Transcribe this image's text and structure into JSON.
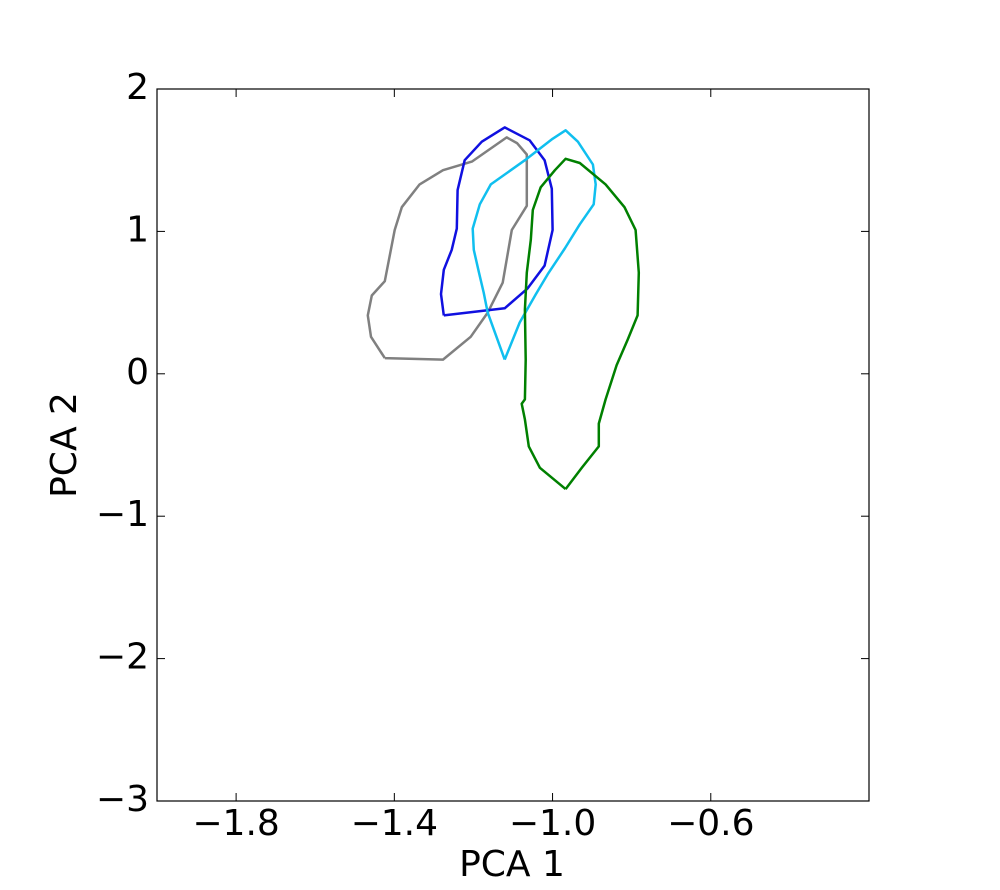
{
  "chart_data": {
    "type": "line",
    "x_label": "PCA 1",
    "y_label": "PCA 2",
    "xlim": [
      -2.0,
      -0.2
    ],
    "ylim": [
      -3,
      2
    ],
    "xticks": [
      {
        "value": -1.8,
        "label": "−1.8"
      },
      {
        "value": -1.4,
        "label": "−1.4"
      },
      {
        "value": -1.0,
        "label": "−1.0"
      },
      {
        "value": -0.6,
        "label": "−0.6"
      }
    ],
    "yticks": [
      {
        "value": -3,
        "label": "−3"
      },
      {
        "value": -2,
        "label": "−2"
      },
      {
        "value": -1,
        "label": "−1"
      },
      0,
      1,
      2
    ],
    "grid": false,
    "series": [
      {
        "color": "#808080",
        "x": [
          -1.424,
          -1.277,
          -1.207,
          -1.164,
          -1.126,
          -1.103,
          -1.065,
          -1.065,
          -1.09,
          -1.116,
          -1.204,
          -1.277,
          -1.336,
          -1.381,
          -1.399,
          -1.424,
          -1.457,
          -1.467,
          -1.459,
          -1.424
        ],
        "y": [
          0.11,
          0.1,
          0.26,
          0.43,
          0.64,
          1.01,
          1.18,
          1.54,
          1.62,
          1.66,
          1.49,
          1.43,
          1.33,
          1.17,
          1.01,
          0.65,
          0.55,
          0.41,
          0.26,
          0.11
        ]
      },
      {
        "color": "#1010e0",
        "x": [
          -1.275,
          -1.121,
          -1.063,
          -1.02,
          -1.0,
          -1.002,
          -1.02,
          -1.058,
          -1.121,
          -1.179,
          -1.222,
          -1.24,
          -1.242,
          -1.255,
          -1.275,
          -1.282,
          -1.275
        ],
        "y": [
          0.41,
          0.46,
          0.6,
          0.76,
          1.01,
          1.3,
          1.5,
          1.64,
          1.73,
          1.63,
          1.5,
          1.29,
          1.02,
          0.87,
          0.73,
          0.56,
          0.41
        ]
      },
      {
        "color": "#10bfef",
        "x": [
          -1.121,
          -1.083,
          -1.042,
          -1.012,
          -0.969,
          -0.931,
          -0.896,
          -0.891,
          -0.898,
          -0.936,
          -0.967,
          -1.0,
          -1.07,
          -1.156,
          -1.184,
          -1.202,
          -1.199,
          -1.186,
          -1.174,
          -1.164,
          -1.121
        ],
        "y": [
          0.1,
          0.36,
          0.56,
          0.7,
          0.88,
          1.05,
          1.19,
          1.33,
          1.47,
          1.63,
          1.71,
          1.65,
          1.5,
          1.33,
          1.19,
          1.02,
          0.87,
          0.71,
          0.57,
          0.43,
          0.1
        ]
      },
      {
        "color": "#008000",
        "x": [
          -0.967,
          -0.926,
          -0.883,
          -0.883,
          -0.866,
          -0.838,
          -0.81,
          -0.785,
          -0.782,
          -0.79,
          -0.818,
          -0.866,
          -0.931,
          -0.967,
          -0.994,
          -1.03,
          -1.05,
          -1.055,
          -1.065,
          -1.07,
          -1.068,
          -1.07,
          -1.078,
          -1.07,
          -1.06,
          -1.032,
          -0.967
        ],
        "y": [
          -0.81,
          -0.66,
          -0.51,
          -0.35,
          -0.18,
          0.06,
          0.24,
          0.41,
          0.71,
          1.01,
          1.17,
          1.33,
          1.48,
          1.51,
          1.43,
          1.31,
          1.15,
          0.94,
          0.71,
          0.45,
          0.1,
          -0.18,
          -0.21,
          -0.32,
          -0.51,
          -0.66,
          -0.81
        ]
      }
    ]
  }
}
